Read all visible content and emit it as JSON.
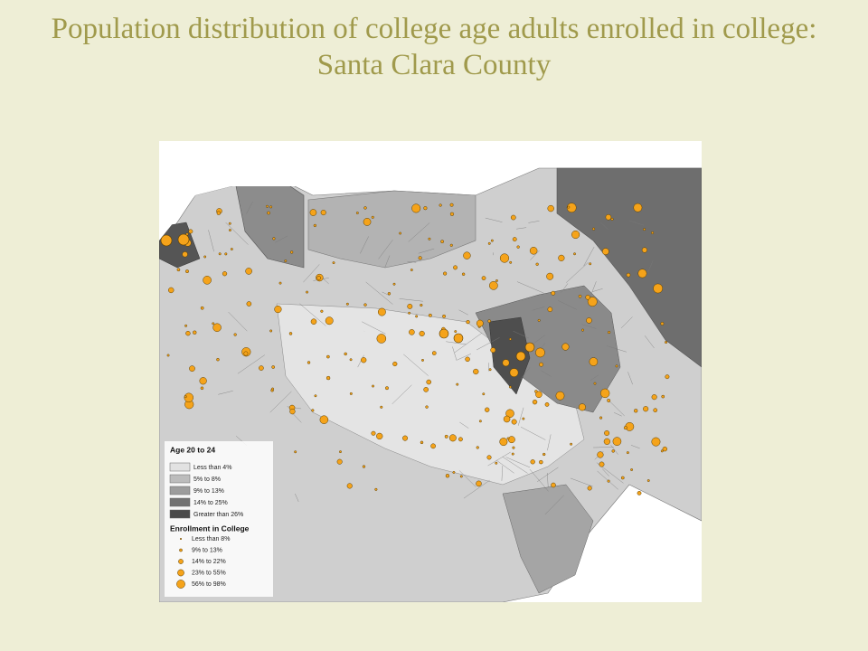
{
  "title": "Population distribution of college age adults enrolled in college: Santa Clara County",
  "legend": {
    "age": {
      "title": "Age 20 to 24",
      "items": [
        "Less than 4%",
        "5% to 8%",
        "9% to 13%",
        "14% to 25%",
        "Greater than 26%"
      ]
    },
    "enrollment": {
      "title": "Enrollment in College",
      "items": [
        "Less than 8%",
        "9% to 13%",
        "14% to 22%",
        "23% to 55%",
        "56% to 98%"
      ]
    }
  }
}
